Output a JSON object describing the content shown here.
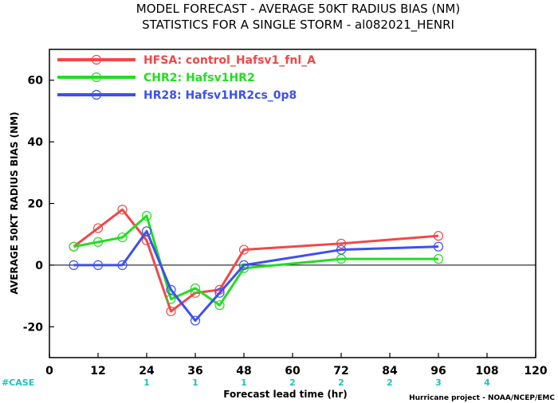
{
  "title_line1": "MODEL FORECAST - AVERAGE 50KT RADIUS BIAS (NM)",
  "title_line2": "STATISTICS FOR A SINGLE STORM - al082021_HENRI",
  "case_header": "#CASE",
  "credit": "Hurricane project - NOAA/NCEP/EMC",
  "colors": {
    "case": "#1fc0c0",
    "zero_line": "#000000",
    "frame": "#000000"
  },
  "chart_data": {
    "type": "line",
    "xlabel": "Forecast lead time (hr)",
    "ylabel": "AVERAGE 50KT RADIUS BIAS (NM)",
    "xlim": [
      0,
      120
    ],
    "ylim": [
      -30,
      70
    ],
    "x_ticks": [
      0,
      12,
      24,
      36,
      48,
      60,
      72,
      84,
      96,
      108,
      120
    ],
    "y_ticks": [
      -20,
      0,
      20,
      40,
      60
    ],
    "y_tick_labels": [
      "-20",
      "0",
      "20",
      "40",
      "60"
    ],
    "grid": false,
    "legend_position": "top-left",
    "series": [
      {
        "name": "HFSA: control_Hafsv1_fnl_A",
        "color": "#f04848",
        "x": [
          6,
          12,
          18,
          24,
          30,
          36,
          42,
          48,
          72,
          96
        ],
        "y": [
          6,
          12,
          18,
          8,
          -15,
          -9,
          -8,
          5,
          7,
          9.5
        ]
      },
      {
        "name": "CHR2: Hafsv1HR2",
        "color": "#22dd22",
        "x": [
          6,
          12,
          18,
          24,
          30,
          36,
          42,
          48,
          72,
          96
        ],
        "y": [
          6,
          7.5,
          9,
          16,
          -11,
          -7.5,
          -13,
          -1,
          2,
          2
        ]
      },
      {
        "name": "HR28: Hafsv1HR2cs_0p8",
        "color": "#3c50f0",
        "x": [
          6,
          12,
          18,
          24,
          30,
          36,
          42,
          48,
          72,
          96
        ],
        "y": [
          0,
          0,
          0,
          11,
          -8,
          -18,
          -9,
          0,
          5,
          6
        ]
      }
    ],
    "case_counts": [
      {
        "x": 24,
        "label": "1"
      },
      {
        "x": 36,
        "label": "1"
      },
      {
        "x": 48,
        "label": "1"
      },
      {
        "x": 60,
        "label": "2"
      },
      {
        "x": 72,
        "label": "2"
      },
      {
        "x": 84,
        "label": "2"
      },
      {
        "x": 96,
        "label": "3"
      },
      {
        "x": 108,
        "label": "4"
      }
    ]
  }
}
